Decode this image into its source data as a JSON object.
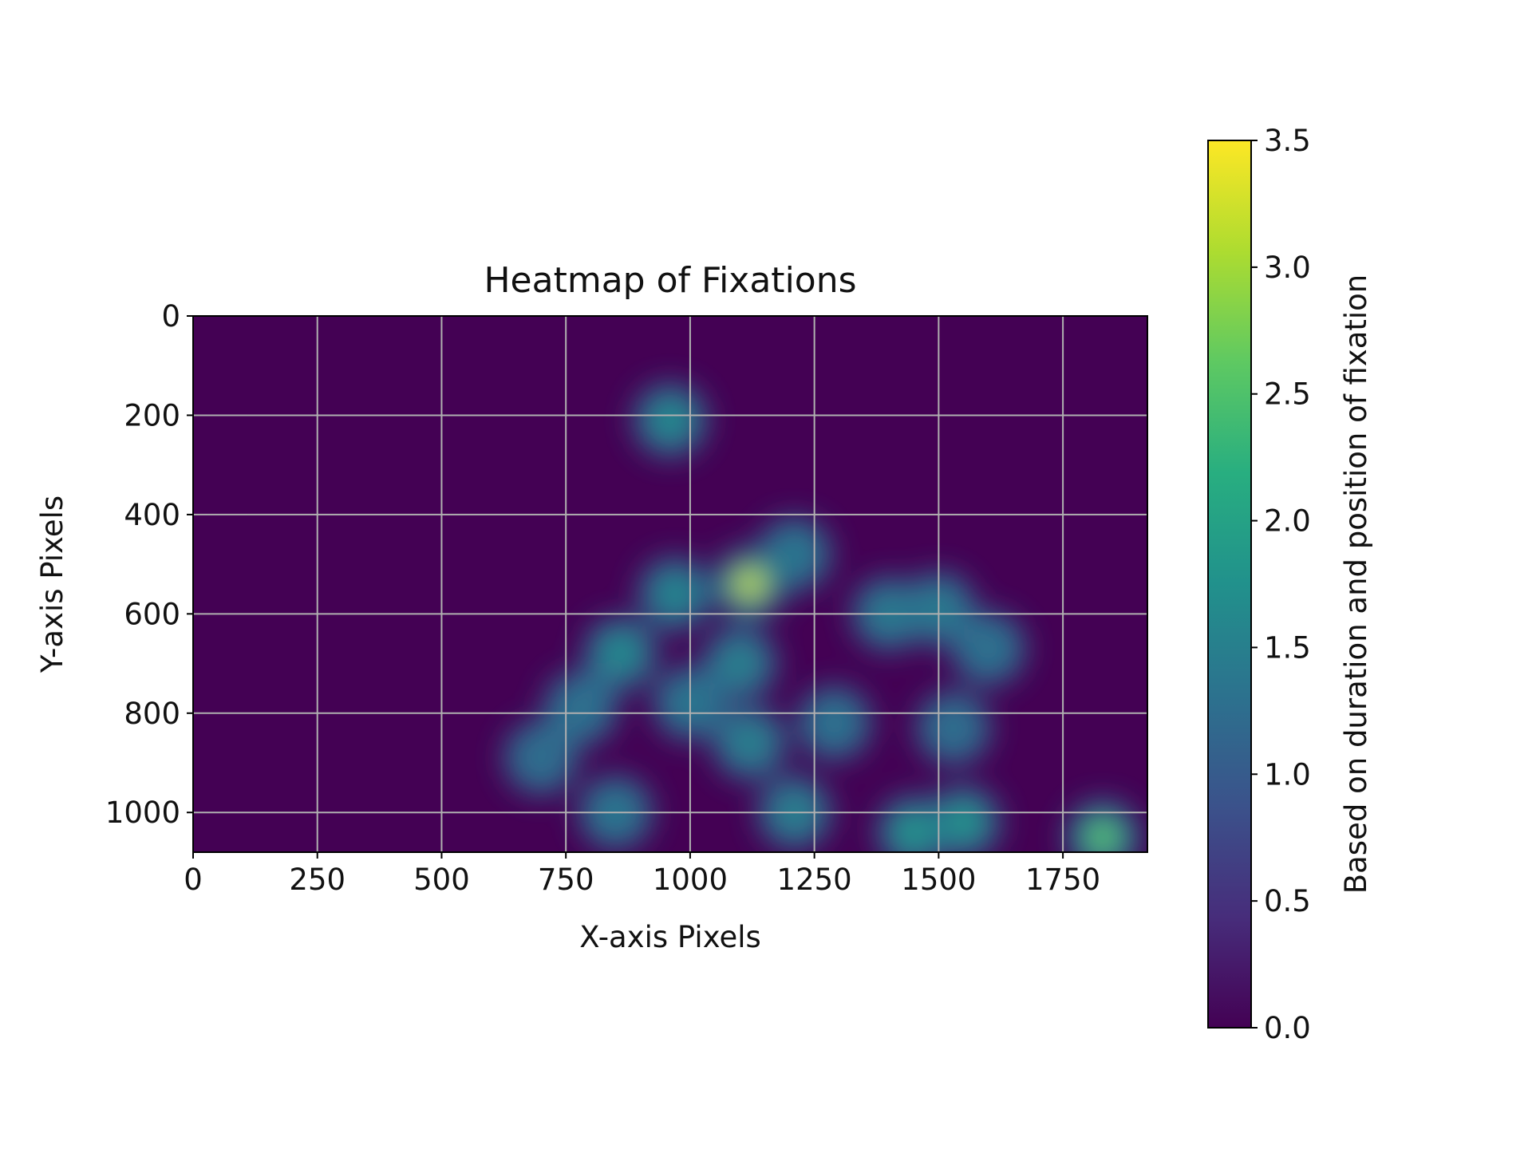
{
  "chart_data": {
    "type": "heatmap",
    "title": "Heatmap of Fixations",
    "xlabel": "X-axis Pixels",
    "ylabel": "Y-axis Pixels",
    "xlim": [
      0,
      1920
    ],
    "ylim": [
      1080,
      0
    ],
    "y_inverted": true,
    "grid": true,
    "xticks": [
      "0",
      "250",
      "500",
      "750",
      "1000",
      "1250",
      "1500",
      "1750"
    ],
    "yticks": [
      "0",
      "200",
      "400",
      "600",
      "800",
      "1000"
    ],
    "colormap": "viridis",
    "colorbar": {
      "label": "Based on duration and position of fixation",
      "range": [
        0.0,
        3.5
      ],
      "ticks": [
        "0.0",
        "0.5",
        "1.0",
        "1.5",
        "2.0",
        "2.5",
        "3.0",
        "3.5"
      ],
      "colors": [
        "#440154",
        "#472d7b",
        "#3b528b",
        "#2c728e",
        "#21918c",
        "#28ae80",
        "#5ec962",
        "#addc30",
        "#fde725"
      ]
    },
    "background_value": 0.0,
    "fixations": [
      {
        "x": 960,
        "y": 210,
        "value": 1.8
      },
      {
        "x": 970,
        "y": 560,
        "value": 1.7
      },
      {
        "x": 1120,
        "y": 540,
        "value": 3.5
      },
      {
        "x": 1210,
        "y": 480,
        "value": 1.4
      },
      {
        "x": 860,
        "y": 680,
        "value": 1.8
      },
      {
        "x": 1100,
        "y": 700,
        "value": 1.6
      },
      {
        "x": 1000,
        "y": 780,
        "value": 1.4
      },
      {
        "x": 1120,
        "y": 860,
        "value": 1.6
      },
      {
        "x": 780,
        "y": 790,
        "value": 1.3
      },
      {
        "x": 700,
        "y": 890,
        "value": 1.2
      },
      {
        "x": 850,
        "y": 1000,
        "value": 1.4
      },
      {
        "x": 1210,
        "y": 1000,
        "value": 1.6
      },
      {
        "x": 1290,
        "y": 820,
        "value": 1.3
      },
      {
        "x": 1400,
        "y": 600,
        "value": 1.5
      },
      {
        "x": 1500,
        "y": 590,
        "value": 1.5
      },
      {
        "x": 1600,
        "y": 670,
        "value": 1.3
      },
      {
        "x": 1450,
        "y": 1040,
        "value": 2.0
      },
      {
        "x": 1550,
        "y": 1020,
        "value": 2.0
      },
      {
        "x": 1530,
        "y": 830,
        "value": 1.2
      },
      {
        "x": 1830,
        "y": 1050,
        "value": 2.8
      }
    ]
  }
}
